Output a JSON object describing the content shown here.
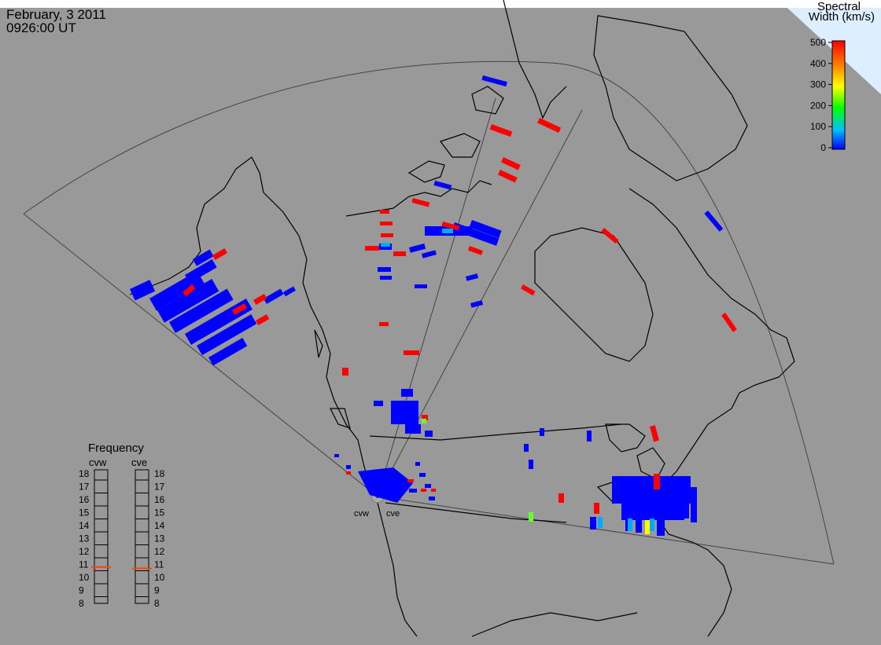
{
  "header": {
    "date": "February, 3 2011",
    "time": "0926:00 UT"
  },
  "colorbar": {
    "title_line1": "Spectral",
    "title_line2": "Width (km/s)",
    "ticks": [
      "500",
      "400",
      "300",
      "200",
      "100",
      "0"
    ],
    "colors": [
      "#ff0000",
      "#ff8800",
      "#ffff00",
      "#00ff00",
      "#00ffff",
      "#0000ff"
    ]
  },
  "radars": {
    "west": "cvw",
    "east": "cve"
  },
  "frequency": {
    "title": "Frequency",
    "col_west": "cvw",
    "col_east": "cve",
    "levels": [
      "18",
      "17",
      "16",
      "15",
      "14",
      "13",
      "12",
      "11",
      "10",
      "9",
      "8"
    ],
    "west_value": 10.8,
    "east_value": 10.7,
    "marker_color": "#ff4400"
  },
  "colors": {
    "background": "#999999",
    "high": "#ff0000",
    "low": "#0000ff",
    "mid": "#00c0ff",
    "green": "#66ff33",
    "yellow": "#ffff00"
  }
}
